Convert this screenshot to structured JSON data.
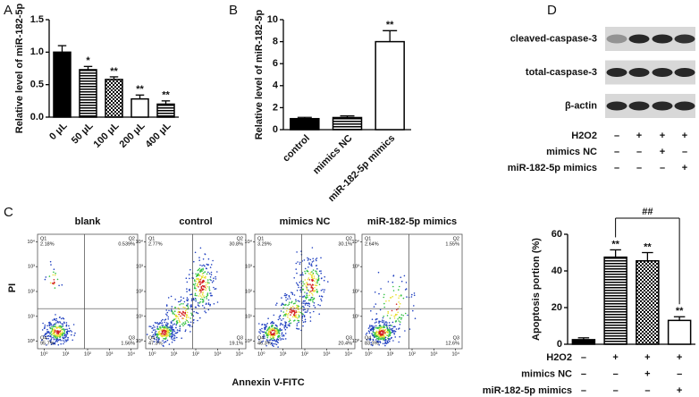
{
  "panel_labels": {
    "a": "A",
    "b": "B",
    "c": "C",
    "d": "D"
  },
  "chart_data": [
    {
      "type": "bar",
      "y_label": "Relative  level of miR-182-5p",
      "categories": [
        "0 μL",
        "50 μL",
        "100 μL",
        "200 μL",
        "400 μL"
      ],
      "values": [
        1.0,
        0.73,
        0.58,
        0.28,
        0.2
      ],
      "errors": [
        0.1,
        0.05,
        0.04,
        0.06,
        0.05
      ],
      "annotations": [
        null,
        "*",
        "**",
        "**",
        "**"
      ],
      "patterns": [
        "solid",
        "hlines",
        "checker",
        "none",
        "hlines"
      ],
      "color": "#000000",
      "ylim": [
        0,
        1.5
      ],
      "yticks": [
        {
          "value": 0,
          "label": "0.0"
        },
        {
          "value": 0.5,
          "label": "0.5"
        },
        {
          "value": 1,
          "label": "1.0"
        },
        {
          "value": 1.5,
          "label": "1.5"
        }
      ]
    },
    {
      "type": "bar",
      "y_label": "Relative  level of miR-182-5p",
      "categories": [
        "control",
        "mimics NC",
        "miR-182-5p mimics"
      ],
      "values": [
        1.0,
        1.1,
        8.0
      ],
      "errors": [
        0.12,
        0.15,
        1.0
      ],
      "annotations": [
        null,
        null,
        "**"
      ],
      "patterns": [
        "solid",
        "hlines",
        "none"
      ],
      "color": "#000000",
      "ylim": [
        0,
        10
      ],
      "yticks": [
        0,
        2,
        4,
        6,
        8,
        10
      ]
    },
    {
      "type": "bar",
      "y_label": "Apoptosis portion (%)",
      "values": [
        2.5,
        47.5,
        45.5,
        13
      ],
      "errors": [
        1,
        4,
        4.5,
        2
      ],
      "annotations": [
        null,
        "**",
        "**",
        "**"
      ],
      "bracket_label": "##",
      "patterns": [
        "solid",
        "hlines",
        "checker",
        "none"
      ],
      "color": "#000000",
      "ylim": [
        0,
        60
      ],
      "yticks": [
        0,
        20,
        40,
        60
      ],
      "conditions": [
        {
          "name": "H2O2",
          "values": [
            "–",
            "+",
            "+",
            "+"
          ]
        },
        {
          "name": "mimics NC",
          "values": [
            "–",
            "–",
            "+",
            "–"
          ]
        },
        {
          "name": "miR-182-5p mimics",
          "values": [
            "–",
            "–",
            "–",
            "+"
          ]
        }
      ]
    }
  ],
  "flow_cytometry": {
    "x_label": "Annexin V-FITC",
    "y_label": "PI",
    "ticks": [
      {
        "value": 0,
        "label": "10⁰"
      },
      {
        "value": 1,
        "label": "10¹"
      },
      {
        "value": 2,
        "label": "10²"
      },
      {
        "value": 3,
        "label": "10³"
      },
      {
        "value": 4,
        "label": "10⁴"
      }
    ],
    "quadrants": [
      "Q1",
      "Q2",
      "Q3",
      "Q4"
    ],
    "plots": [
      {
        "title": "blank",
        "percentages": [
          "2.18%",
          "0.539%",
          "1.56%",
          "95.7%"
        ]
      },
      {
        "title": "control",
        "percentages": [
          "2.77%",
          "30.8%",
          "19.1%",
          "47.3%"
        ]
      },
      {
        "title": "mimics NC",
        "percentages": [
          "3.29%",
          "30.1%",
          "20.4%",
          "46.3%"
        ]
      },
      {
        "title": "miR-182-5p mimics",
        "percentages": [
          "2.64%",
          "1.55%",
          "12.6%",
          "83.3%"
        ]
      }
    ]
  },
  "western_blot": {
    "bands": [
      "cleaved-caspase-3",
      "total-caspase-3",
      "β-actin"
    ],
    "conditions": [
      {
        "name": "H2O2",
        "values": [
          "–",
          "+",
          "+",
          "+"
        ]
      },
      {
        "name": "mimics NC",
        "values": [
          "–",
          "–",
          "+",
          "–"
        ]
      },
      {
        "name": "miR-182-5p mimics",
        "values": [
          "–",
          "–",
          "–",
          "+"
        ]
      }
    ]
  }
}
